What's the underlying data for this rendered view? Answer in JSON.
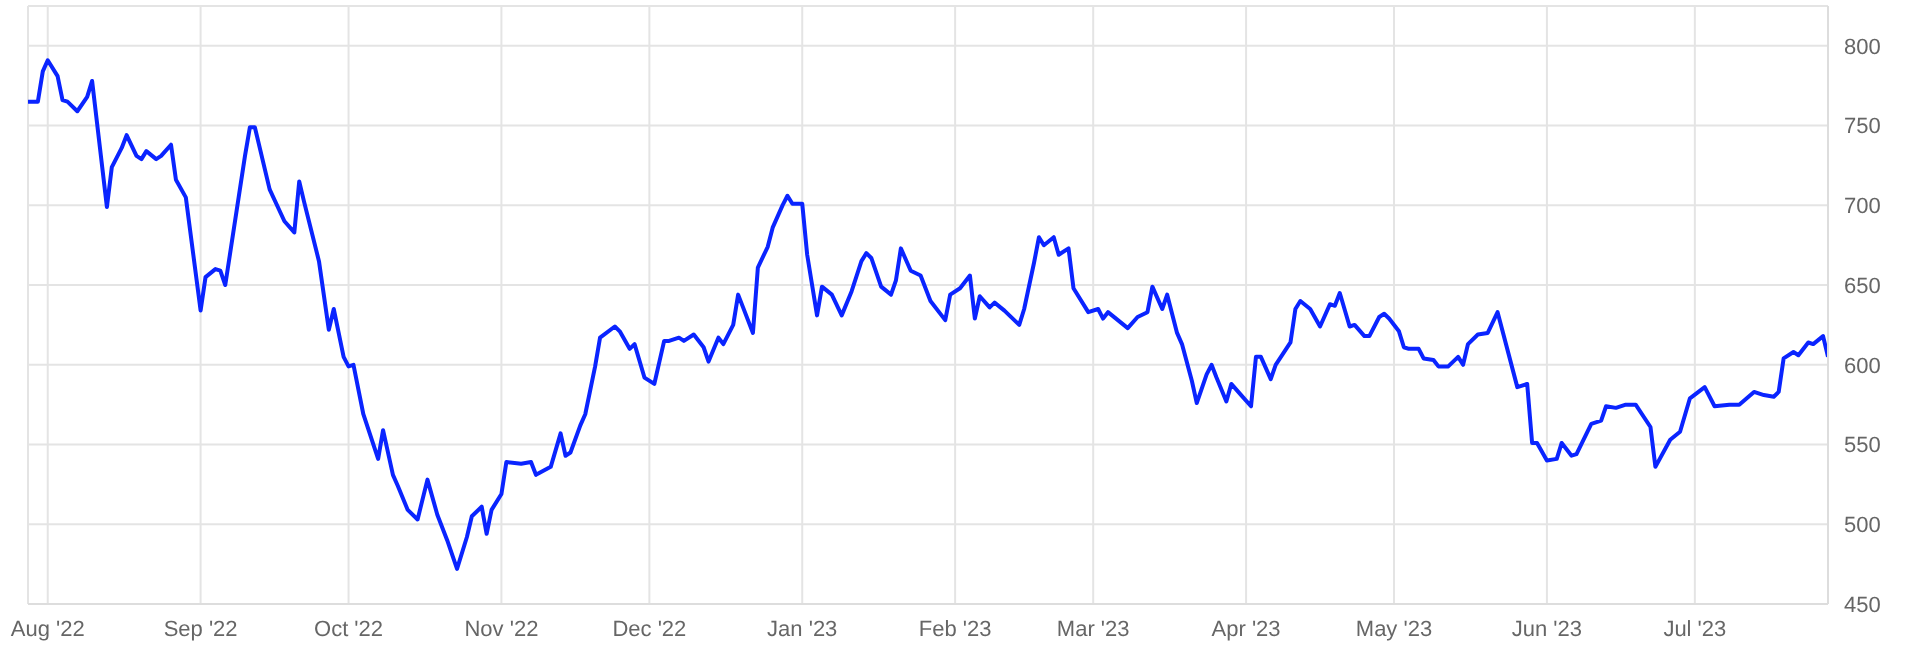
{
  "chart_data": {
    "type": "line",
    "x": [
      "2022-07-28",
      "2022-07-30",
      "2022-07-31",
      "2022-08-01",
      "2022-08-03",
      "2022-08-04",
      "2022-08-05",
      "2022-08-07",
      "2022-08-09",
      "2022-08-10",
      "2022-08-13",
      "2022-08-14",
      "2022-08-16",
      "2022-08-17",
      "2022-08-19",
      "2022-08-20",
      "2022-08-21",
      "2022-08-23",
      "2022-08-24",
      "2022-08-26",
      "2022-08-27",
      "2022-08-29",
      "2022-09-01",
      "2022-09-02",
      "2022-09-04",
      "2022-09-05",
      "2022-09-06",
      "2022-09-10",
      "2022-09-11",
      "2022-09-12",
      "2022-09-15",
      "2022-09-18",
      "2022-09-20",
      "2022-09-21",
      "2022-09-22",
      "2022-09-25",
      "2022-09-27",
      "2022-09-28",
      "2022-09-30",
      "2022-10-01",
      "2022-10-02",
      "2022-10-04",
      "2022-10-07",
      "2022-10-08",
      "2022-10-10",
      "2022-10-11",
      "2022-10-13",
      "2022-10-15",
      "2022-10-17",
      "2022-10-19",
      "2022-10-21",
      "2022-10-23",
      "2022-10-25",
      "2022-10-26",
      "2022-10-28",
      "2022-10-29",
      "2022-10-30",
      "2022-11-01",
      "2022-11-02",
      "2022-11-05",
      "2022-11-07",
      "2022-11-08",
      "2022-11-11",
      "2022-11-13",
      "2022-11-14",
      "2022-11-15",
      "2022-11-17",
      "2022-11-18",
      "2022-11-20",
      "2022-11-21",
      "2022-11-24",
      "2022-11-25",
      "2022-11-27",
      "2022-11-28",
      "2022-11-30",
      "2022-12-02",
      "2022-12-04",
      "2022-12-05",
      "2022-12-07",
      "2022-12-08",
      "2022-12-10",
      "2022-12-12",
      "2022-12-13",
      "2022-12-15",
      "2022-12-16",
      "2022-12-18",
      "2022-12-19",
      "2022-12-20",
      "2022-12-22",
      "2022-12-23",
      "2022-12-25",
      "2022-12-26",
      "2022-12-28",
      "2022-12-29",
      "2022-12-30",
      "2023-01-01",
      "2023-01-02",
      "2023-01-04",
      "2023-01-05",
      "2023-01-07",
      "2023-01-09",
      "2023-01-11",
      "2023-01-13",
      "2023-01-14",
      "2023-01-15",
      "2023-01-17",
      "2023-01-19",
      "2023-01-20",
      "2023-01-21",
      "2023-01-23",
      "2023-01-25",
      "2023-01-27",
      "2023-01-30",
      "2023-01-31",
      "2023-02-02",
      "2023-02-04",
      "2023-02-05",
      "2023-02-06",
      "2023-02-08",
      "2023-02-09",
      "2023-02-11",
      "2023-02-14",
      "2023-02-15",
      "2023-02-17",
      "2023-02-18",
      "2023-02-19",
      "2023-02-21",
      "2023-02-22",
      "2023-02-24",
      "2023-02-25",
      "2023-02-28",
      "2023-03-02",
      "2023-03-03",
      "2023-03-04",
      "2023-03-08",
      "2023-03-10",
      "2023-03-12",
      "2023-03-13",
      "2023-03-15",
      "2023-03-16",
      "2023-03-18",
      "2023-03-19",
      "2023-03-21",
      "2023-03-22",
      "2023-03-24",
      "2023-03-25",
      "2023-03-26",
      "2023-03-28",
      "2023-03-29",
      "2023-03-31",
      "2023-04-02",
      "2023-04-03",
      "2023-04-04",
      "2023-04-06",
      "2023-04-07",
      "2023-04-10",
      "2023-04-11",
      "2023-04-12",
      "2023-04-14",
      "2023-04-16",
      "2023-04-18",
      "2023-04-19",
      "2023-04-20",
      "2023-04-22",
      "2023-04-23",
      "2023-04-25",
      "2023-04-26",
      "2023-04-28",
      "2023-04-29",
      "2023-04-30",
      "2023-05-02",
      "2023-05-03",
      "2023-05-04",
      "2023-05-06",
      "2023-05-07",
      "2023-05-09",
      "2023-05-10",
      "2023-05-12",
      "2023-05-14",
      "2023-05-15",
      "2023-05-16",
      "2023-05-18",
      "2023-05-20",
      "2023-05-22",
      "2023-05-26",
      "2023-05-28",
      "2023-05-29",
      "2023-05-30",
      "2023-06-01",
      "2023-06-03",
      "2023-06-04",
      "2023-06-06",
      "2023-06-07",
      "2023-06-10",
      "2023-06-12",
      "2023-06-13",
      "2023-06-15",
      "2023-06-17",
      "2023-06-19",
      "2023-06-22",
      "2023-06-23",
      "2023-06-26",
      "2023-06-28",
      "2023-06-30",
      "2023-07-03",
      "2023-07-05",
      "2023-07-08",
      "2023-07-10",
      "2023-07-13",
      "2023-07-15",
      "2023-07-17",
      "2023-07-18",
      "2023-07-19",
      "2023-07-21",
      "2023-07-22",
      "2023-07-24",
      "2023-07-25",
      "2023-07-27",
      "2023-07-28"
    ],
    "series": [
      {
        "color": "#0a24ff",
        "values": [
          765,
          765,
          784,
          791,
          781,
          766,
          765,
          759,
          768,
          778,
          699,
          724,
          736,
          744,
          731,
          729,
          734,
          729,
          731,
          738,
          716,
          705,
          634,
          655,
          660,
          659,
          650,
          731,
          749,
          749,
          710,
          690,
          683,
          715,
          702,
          665,
          622,
          635,
          605,
          599,
          600,
          569,
          541,
          559,
          531,
          524,
          509,
          503,
          528,
          506,
          490,
          472,
          492,
          505,
          511,
          494,
          509,
          519,
          539,
          538,
          539,
          531,
          536,
          557,
          543,
          545,
          562,
          569,
          599,
          617,
          624,
          621,
          610,
          613,
          592,
          588,
          615,
          615,
          617,
          615,
          619,
          611,
          602,
          617,
          613,
          625,
          644,
          636,
          620,
          661,
          674,
          686,
          700,
          706,
          701,
          701,
          669,
          631,
          649,
          644,
          631,
          646,
          665,
          670,
          667,
          649,
          644,
          653,
          673,
          659,
          656,
          640,
          628,
          644,
          648,
          656,
          629,
          643,
          636,
          639,
          634,
          625,
          635,
          664,
          680,
          675,
          680,
          669,
          673,
          648,
          633,
          635,
          629,
          633,
          623,
          630,
          633,
          649,
          635,
          644,
          620,
          613,
          590,
          576,
          594,
          600,
          592,
          577,
          588,
          581,
          574,
          605,
          605,
          591,
          600,
          614,
          635,
          640,
          635,
          624,
          638,
          637,
          645,
          624,
          625,
          618,
          618,
          630,
          632,
          629,
          621,
          611,
          610,
          610,
          604,
          603,
          599,
          599,
          605,
          600,
          613,
          619,
          620,
          633,
          586,
          588,
          551,
          551,
          540,
          541,
          551,
          543,
          544,
          563,
          565,
          574,
          573,
          575,
          575,
          561,
          536,
          553,
          558,
          579,
          586,
          574,
          575,
          575,
          583,
          581,
          580,
          583,
          604,
          608,
          606,
          614,
          613,
          618,
          605
        ]
      }
    ],
    "xlim": [
      "2022-07-28",
      "2023-07-28"
    ],
    "xticks": [
      {
        "value": "2022-08-01",
        "label": "Aug '22"
      },
      {
        "value": "2022-09-01",
        "label": "Sep '22"
      },
      {
        "value": "2022-10-01",
        "label": "Oct '22"
      },
      {
        "value": "2022-11-01",
        "label": "Nov '22"
      },
      {
        "value": "2022-12-01",
        "label": "Dec '22"
      },
      {
        "value": "2023-01-01",
        "label": "Jan '23"
      },
      {
        "value": "2023-02-01",
        "label": "Feb '23"
      },
      {
        "value": "2023-03-01",
        "label": "Mar '23"
      },
      {
        "value": "2023-04-01",
        "label": "Apr '23"
      },
      {
        "value": "2023-05-01",
        "label": "May '23"
      },
      {
        "value": "2023-06-01",
        "label": "Jun '23"
      },
      {
        "value": "2023-07-01",
        "label": "Jul '23"
      }
    ],
    "ylim": [
      450,
      825
    ],
    "yticks": [
      450,
      500,
      550,
      600,
      650,
      700,
      750,
      800
    ],
    "grid": true,
    "marker": "none",
    "line_style": "solid"
  }
}
